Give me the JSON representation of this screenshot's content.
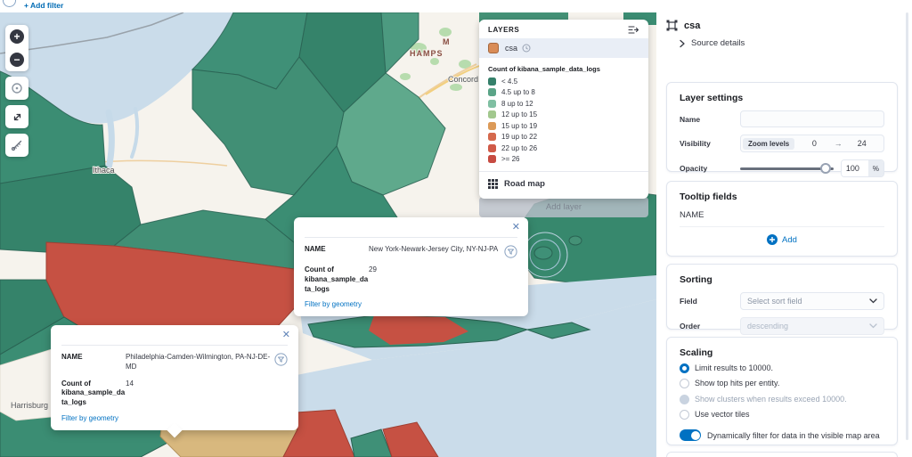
{
  "topbar": {
    "add_filter": "+ Add filter"
  },
  "map": {
    "labels": {
      "state_fragment_m": "M",
      "state_fragment_hamps": "HAMPS",
      "city_concord": "Concord",
      "city_ithaca": "Ithaca",
      "city_harrisburg": "Harrisburg"
    },
    "add_layer_button": "Add layer",
    "controls": {
      "zoom_in": "+",
      "zoom_out": "−"
    }
  },
  "layers_panel": {
    "title": "LAYERS",
    "layer_name": "csa",
    "layer_swatch_color": "#d98c57",
    "legend_title": "Count of kibana_sample_data_logs",
    "legend_items": [
      {
        "label": "< 4.5",
        "color": "#35806a"
      },
      {
        "label": "4.5 up to 8",
        "color": "#5aa487"
      },
      {
        "label": "8 up to 12",
        "color": "#7fbfa2"
      },
      {
        "label": "12 up to 15",
        "color": "#a2c88e"
      },
      {
        "label": "15 up to 19",
        "color": "#dc9a58"
      },
      {
        "label": "19 up to 22",
        "color": "#d5694d"
      },
      {
        "label": "22 up to 26",
        "color": "#d05a48"
      },
      {
        "label": ">= 26",
        "color": "#c74b41"
      }
    ],
    "basemap_label": "Road map"
  },
  "tooltips": [
    {
      "name_label": "NAME",
      "name_value": "New York-Newark-Jersey City, NY-NJ-PA",
      "count_label": "Count of kibana_sample_data_logs",
      "count_value": "29",
      "filter_link": "Filter by geometry"
    },
    {
      "name_label": "NAME",
      "name_value": "Philadelphia-Camden-Wilmington, PA-NJ-DE-MD",
      "count_label": "Count of kibana_sample_data_logs",
      "count_value": "14",
      "filter_link": "Filter by geometry"
    }
  ],
  "sidebar": {
    "layer_title": "csa",
    "source_details": "Source details",
    "layer_settings": {
      "title": "Layer settings",
      "name_label": "Name",
      "name_value": "",
      "visibility_label": "Visibility",
      "zoom_levels_label": "Zoom levels",
      "zoom_min": "0",
      "zoom_max": "24",
      "opacity_label": "Opacity",
      "opacity_value": "100",
      "opacity_unit": "%"
    },
    "tooltip_fields": {
      "title": "Tooltip fields",
      "fields": [
        "NAME"
      ],
      "add_label": "Add"
    },
    "sorting": {
      "title": "Sorting",
      "field_label": "Field",
      "field_placeholder": "Select sort field",
      "order_label": "Order",
      "order_value": "descending"
    },
    "scaling": {
      "title": "Scaling",
      "options": [
        {
          "label": "Limit results to 10000.",
          "state": "selected"
        },
        {
          "label": "Show top hits per entity.",
          "state": "default"
        },
        {
          "label": "Show clusters when results exceed 10000.",
          "state": "disabled"
        },
        {
          "label": "Use vector tiles",
          "state": "default"
        }
      ],
      "toggle_label": "Dynamically filter for data in the visible map area",
      "toggle_state": "on"
    }
  },
  "colors": {
    "accent": "#0071c2",
    "link": "#006bb4",
    "map_green": "#3b8d73",
    "map_red": "#c65143",
    "map_tan": "#d8b87e",
    "water": "#cadcea"
  }
}
